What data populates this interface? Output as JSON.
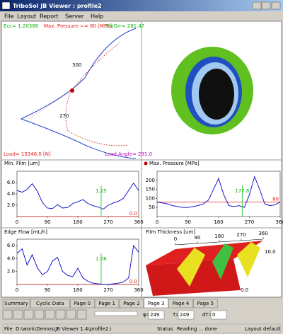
{
  "window": {
    "title": "TriboSol JB Viewer : profile2"
  },
  "menu": [
    "File",
    "Layout",
    "Report",
    "Server",
    "Help"
  ],
  "polar": {
    "ecc": "Ecc= 1.20386",
    "max_pressure": "Max. Pressure >= 80 [MPa]",
    "phi_grr": "PhiGrr= 281.47",
    "labels": [
      "300",
      "270"
    ],
    "load": "Load= 15346.0 [N]",
    "load_angle": "Load Angle= 291.0"
  },
  "charts": [
    {
      "type": "line",
      "title": "Min. Film [um]",
      "color": "#0000cc",
      "x": [
        0,
        15,
        30,
        45,
        60,
        75,
        90,
        105,
        120,
        135,
        150,
        165,
        180,
        195,
        210,
        225,
        240,
        255,
        270,
        285,
        300,
        315,
        330,
        345,
        360
      ],
      "values": [
        4.6,
        4.3,
        4.8,
        5.8,
        4.5,
        2.5,
        1.5,
        1.4,
        2.1,
        1.5,
        1.6,
        2.3,
        2.6,
        3.0,
        2.3,
        1.9,
        1.7,
        1.3,
        2.0,
        2.4,
        2.7,
        3.2,
        4.6,
        5.9,
        4.6
      ],
      "xlim": [
        0,
        360
      ],
      "xticks": [
        0,
        90,
        180,
        270,
        360
      ],
      "ylim": [
        0,
        8
      ],
      "yticks": [
        {
          "value": 2,
          "label": "2.0"
        },
        {
          "value": 4,
          "label": "4.0"
        },
        {
          "value": 6,
          "label": "6.0"
        }
      ],
      "reference": {
        "value": 0,
        "label": "0.0"
      },
      "cursor_label": "1.25"
    },
    {
      "type": "line",
      "title": "Max. Pressure [MPa]",
      "color": "#0000cc",
      "x": [
        0,
        15,
        30,
        45,
        60,
        75,
        90,
        105,
        120,
        135,
        150,
        165,
        180,
        195,
        210,
        225,
        240,
        255,
        270,
        285,
        300,
        315,
        330,
        345,
        360
      ],
      "values": [
        80,
        75,
        70,
        60,
        55,
        50,
        50,
        55,
        60,
        70,
        90,
        150,
        210,
        120,
        60,
        55,
        60,
        50,
        120,
        220,
        150,
        70,
        60,
        65,
        80
      ],
      "xlim": [
        0,
        360
      ],
      "xticks": [
        0,
        90,
        180,
        270,
        360
      ],
      "ylim": [
        0,
        250
      ],
      "yticks": [
        50,
        100,
        150,
        200
      ],
      "reference": {
        "value": 80,
        "label": "80"
      },
      "cursor_label": "177.8"
    },
    {
      "type": "line",
      "title": "Edge Flow [mL/h]",
      "color": "#0000cc",
      "x": [
        0,
        15,
        30,
        45,
        60,
        75,
        90,
        105,
        120,
        135,
        150,
        165,
        180,
        195,
        210,
        225,
        240,
        255,
        270,
        285,
        300,
        315,
        330,
        345,
        360
      ],
      "values": [
        4.8,
        5.5,
        3.0,
        4.6,
        2.6,
        1.5,
        2.0,
        3.6,
        4.2,
        2.0,
        1.4,
        1.2,
        2.5,
        1.0,
        0.5,
        0.2,
        0.1,
        0.0,
        0.0,
        0.1,
        0.2,
        0.4,
        1.0,
        6.0,
        5.0
      ],
      "xlim": [
        0,
        360
      ],
      "xticks": [
        0,
        90,
        180,
        270,
        360
      ],
      "ylim": [
        0,
        7
      ],
      "yticks": [
        {
          "value": 2,
          "label": "2.0"
        },
        {
          "value": 4,
          "label": "4.0"
        },
        {
          "value": 6,
          "label": "6.0"
        }
      ],
      "reference": {
        "value": 0,
        "label": "0.0"
      },
      "cursor_label": "1.06"
    }
  ],
  "film_thickness": {
    "title": "Film Thickness [um]",
    "xticks": [
      0,
      90,
      180,
      270,
      360
    ],
    "labels": [
      "10.0",
      "0.0"
    ]
  },
  "tabs": [
    "Summary",
    "Cyclic Data",
    "Page 0",
    "Page 1",
    "Page 2",
    "Page 3",
    "Page 4",
    "Page 5"
  ],
  "controls": {
    "phi_label": "φ=",
    "phi": 249,
    "t_label": "T=",
    "t": 249,
    "dt_label": "dT=",
    "dt": 0
  },
  "status": {
    "file_label": "File",
    "file": "D:\\work\\Demos\\JB Viewer 1.4\\profile2.i",
    "status_label": "Status",
    "status": "Reading ... done",
    "layout_label": "Layout",
    "layout": "default"
  }
}
